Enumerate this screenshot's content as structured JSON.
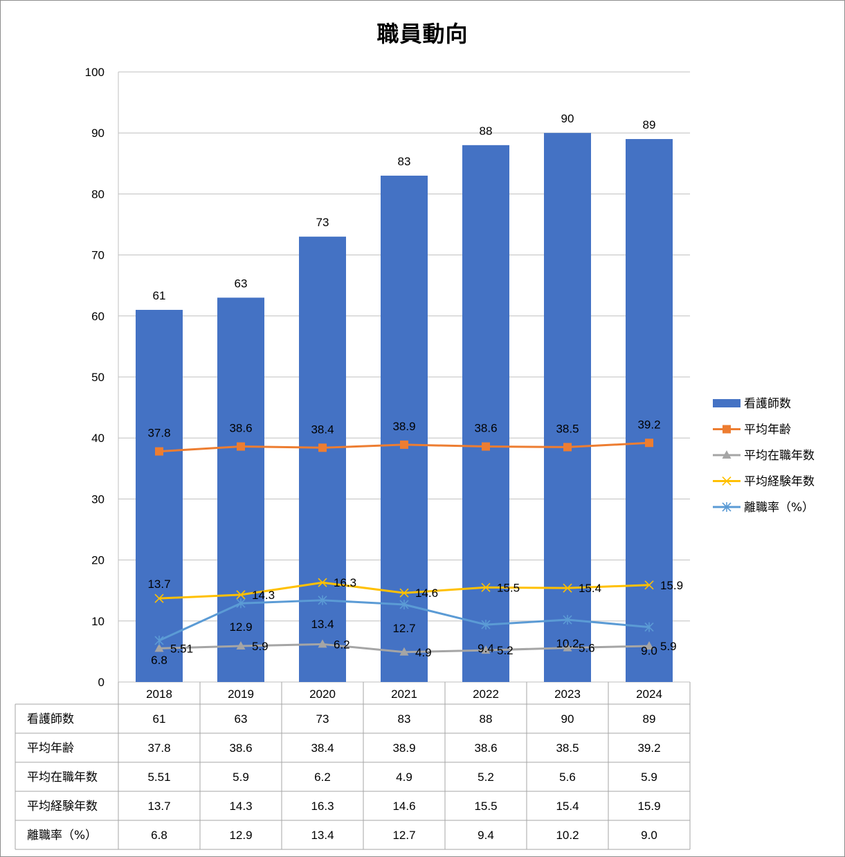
{
  "chart_data": {
    "type": "bar",
    "title": "職員動向",
    "categories": [
      "2018",
      "2019",
      "2020",
      "2021",
      "2022",
      "2023",
      "2024"
    ],
    "ylim": [
      0,
      100
    ],
    "yticks": [
      0,
      10,
      20,
      30,
      40,
      50,
      60,
      70,
      80,
      90,
      100
    ],
    "grid": true,
    "legend_position": "right",
    "series": [
      {
        "name": "看護師数",
        "kind": "bar",
        "color": "#4472c4",
        "marker": "none",
        "values": [
          61,
          63,
          73,
          83,
          88,
          90,
          89
        ],
        "labels": [
          "61",
          "63",
          "73",
          "83",
          "88",
          "90",
          "89"
        ]
      },
      {
        "name": "平均年齢",
        "kind": "line",
        "color": "#ed7d31",
        "marker": "square",
        "values": [
          37.8,
          38.6,
          38.4,
          38.9,
          38.6,
          38.5,
          39.2
        ],
        "labels": [
          "37.8",
          "38.6",
          "38.4",
          "38.9",
          "38.6",
          "38.5",
          "39.2"
        ]
      },
      {
        "name": "平均在職年数",
        "kind": "line",
        "color": "#a5a5a5",
        "marker": "triangle",
        "values": [
          5.51,
          5.9,
          6.2,
          4.9,
          5.2,
          5.6,
          5.9
        ],
        "labels": [
          "5.51",
          "5.9",
          "6.2",
          "4.9",
          "5.2",
          "5.6",
          "5.9"
        ]
      },
      {
        "name": "平均経験年数",
        "kind": "line",
        "color": "#ffc000",
        "marker": "x",
        "values": [
          13.7,
          14.3,
          16.3,
          14.6,
          15.5,
          15.4,
          15.9
        ],
        "labels": [
          "13.7",
          "14.3",
          "16.3",
          "14.6",
          "15.5",
          "15.4",
          "15.9"
        ]
      },
      {
        "name": "離職率（%）",
        "kind": "line",
        "color": "#5b9bd5",
        "marker": "star",
        "values": [
          6.8,
          12.9,
          13.4,
          12.7,
          9.4,
          10.2,
          9.0
        ],
        "labels": [
          "6.8",
          "12.9",
          "13.4",
          "12.7",
          "9.4",
          "10.2",
          "9.0"
        ]
      }
    ]
  }
}
